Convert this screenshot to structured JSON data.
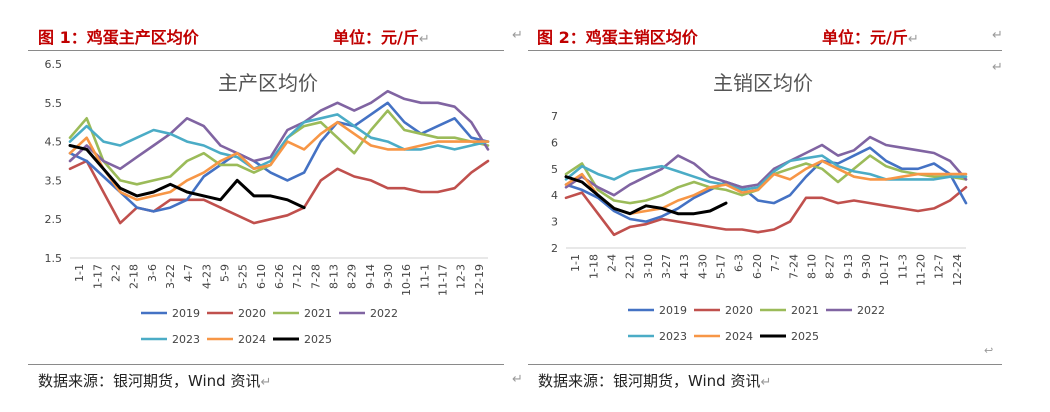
{
  "left": {
    "title": "图 1：鸡蛋主产区均价",
    "unit": "单位：元/斤",
    "source": "数据来源：银河期货，Wind 资讯"
  },
  "right": {
    "title": "图 2：鸡蛋主销区均价",
    "unit": "单位：元/斤",
    "source": "数据来源：银河期货，Wind 资讯"
  },
  "marks": {
    "para": "↵",
    "enter": "↵",
    "small": "↩"
  },
  "chart_data": [
    {
      "type": "line",
      "title": "主产区均价",
      "ylim": [
        1.5,
        6.5
      ],
      "yticks": [
        "6.5",
        "5.5",
        "4.5",
        "3.5",
        "2.5",
        "1.5"
      ],
      "xlabels": [
        "1-1",
        "1-17",
        "2-2",
        "2-18",
        "3-6",
        "3-22",
        "4-7",
        "4-23",
        "5-9",
        "5-25",
        "6-10",
        "6-26",
        "7-12",
        "7-28",
        "8-13",
        "8-29",
        "9-14",
        "9-30",
        "10-16",
        "11-1",
        "11-17",
        "12-3",
        "12-19"
      ],
      "series": [
        {
          "name": "2019",
          "color": "#4472c4",
          "values": [
            4.2,
            4.0,
            3.6,
            3.2,
            2.8,
            2.7,
            2.8,
            3.0,
            3.6,
            3.9,
            4.2,
            4.0,
            3.7,
            3.5,
            3.7,
            4.5,
            5.0,
            4.9,
            5.2,
            5.5,
            5.0,
            4.7,
            4.9,
            5.1,
            4.6,
            4.5
          ]
        },
        {
          "name": "2020",
          "color": "#c0504d",
          "values": [
            3.8,
            4.0,
            3.2,
            2.4,
            2.8,
            2.7,
            3.0,
            3.0,
            3.0,
            2.8,
            2.6,
            2.4,
            2.5,
            2.6,
            2.8,
            3.5,
            3.8,
            3.6,
            3.5,
            3.3,
            3.3,
            3.2,
            3.2,
            3.3,
            3.7,
            4.0
          ]
        },
        {
          "name": "2021",
          "color": "#9bbb59",
          "values": [
            4.6,
            5.1,
            4.0,
            3.5,
            3.4,
            3.5,
            3.6,
            4.0,
            4.2,
            3.9,
            3.9,
            3.7,
            3.9,
            4.6,
            4.9,
            5.0,
            4.6,
            4.2,
            4.8,
            5.3,
            4.8,
            4.7,
            4.6,
            4.6,
            4.5,
            4.4
          ]
        },
        {
          "name": "2022",
          "color": "#8064a2",
          "values": [
            4.0,
            4.4,
            4.0,
            3.8,
            4.1,
            4.4,
            4.7,
            5.1,
            4.9,
            4.4,
            4.2,
            4.0,
            4.1,
            4.8,
            5.0,
            5.3,
            5.5,
            5.3,
            5.5,
            5.8,
            5.6,
            5.5,
            5.5,
            5.4,
            5.0,
            4.3
          ]
        },
        {
          "name": "2023",
          "color": "#4bacc6",
          "values": [
            4.5,
            4.9,
            4.5,
            4.4,
            4.6,
            4.8,
            4.7,
            4.5,
            4.4,
            4.2,
            4.1,
            3.8,
            4.0,
            4.6,
            5.0,
            5.1,
            5.2,
            4.9,
            4.6,
            4.5,
            4.3,
            4.3,
            4.4,
            4.3,
            4.4,
            4.5
          ]
        },
        {
          "name": "2024",
          "color": "#f79646",
          "values": [
            4.2,
            4.6,
            3.8,
            3.2,
            3.0,
            3.1,
            3.2,
            3.5,
            3.7,
            4.0,
            4.2,
            3.8,
            3.9,
            4.5,
            4.3,
            4.7,
            5.0,
            4.7,
            4.4,
            4.3,
            4.3,
            4.4,
            4.5,
            4.5,
            4.5,
            4.5
          ]
        },
        {
          "name": "2025",
          "color": "#000000",
          "values": [
            4.4,
            4.3,
            3.8,
            3.3,
            3.1,
            3.2,
            3.4,
            3.2,
            3.1,
            3.0,
            3.5,
            3.1,
            3.1,
            3.0,
            2.8
          ]
        }
      ],
      "legend": [
        "2019",
        "2020",
        "2021",
        "2022",
        "2023",
        "2024",
        "2025"
      ]
    },
    {
      "type": "line",
      "title": "主销区均价",
      "ylim": [
        2,
        7
      ],
      "yticks": [
        "7",
        "6",
        "5",
        "4",
        "3",
        "2"
      ],
      "xlabels": [
        "1-1",
        "1-18",
        "2-4",
        "2-21",
        "3-10",
        "3-27",
        "4-13",
        "4-30",
        "5-17",
        "6-3",
        "6-20",
        "7-7",
        "7-24",
        "8-10",
        "8-27",
        "9-13",
        "9-30",
        "10-17",
        "11-3",
        "11-20",
        "12-7",
        "12-24"
      ],
      "series": [
        {
          "name": "2019",
          "color": "#4472c4",
          "values": [
            4.4,
            4.2,
            3.9,
            3.4,
            3.1,
            3.0,
            3.2,
            3.5,
            3.9,
            4.2,
            4.5,
            4.3,
            3.8,
            3.7,
            4.0,
            4.7,
            5.3,
            5.2,
            5.5,
            5.8,
            5.3,
            5.0,
            5.0,
            5.2,
            4.8,
            3.7
          ]
        },
        {
          "name": "2020",
          "color": "#c0504d",
          "values": [
            3.9,
            4.1,
            3.3,
            2.5,
            2.8,
            2.9,
            3.1,
            3.0,
            2.9,
            2.8,
            2.7,
            2.7,
            2.6,
            2.7,
            3.0,
            3.9,
            3.9,
            3.7,
            3.8,
            3.7,
            3.6,
            3.5,
            3.4,
            3.5,
            3.8,
            4.3
          ]
        },
        {
          "name": "2021",
          "color": "#9bbb59",
          "values": [
            4.8,
            5.2,
            4.2,
            3.8,
            3.7,
            3.8,
            4.0,
            4.3,
            4.5,
            4.3,
            4.2,
            4.0,
            4.2,
            4.8,
            5.0,
            5.2,
            5.0,
            4.5,
            5.0,
            5.5,
            5.1,
            4.9,
            4.8,
            4.7,
            4.7,
            4.6
          ]
        },
        {
          "name": "2022",
          "color": "#8064a2",
          "values": [
            4.3,
            4.7,
            4.3,
            4.0,
            4.4,
            4.7,
            5.0,
            5.5,
            5.2,
            4.7,
            4.5,
            4.3,
            4.4,
            5.0,
            5.3,
            5.6,
            5.9,
            5.5,
            5.7,
            6.2,
            5.9,
            5.8,
            5.7,
            5.6,
            5.3,
            4.6
          ]
        },
        {
          "name": "2023",
          "color": "#4bacc6",
          "values": [
            4.6,
            5.1,
            4.8,
            4.6,
            4.9,
            5.0,
            5.1,
            4.9,
            4.7,
            4.5,
            4.4,
            4.2,
            4.3,
            4.9,
            5.3,
            5.4,
            5.5,
            5.1,
            4.9,
            4.8,
            4.6,
            4.6,
            4.6,
            4.6,
            4.7,
            4.7
          ]
        },
        {
          "name": "2024",
          "color": "#f79646",
          "values": [
            4.4,
            4.8,
            4.0,
            3.5,
            3.3,
            3.4,
            3.5,
            3.8,
            4.0,
            4.3,
            4.4,
            4.1,
            4.2,
            4.8,
            4.6,
            5.0,
            5.3,
            5.0,
            4.7,
            4.6,
            4.6,
            4.7,
            4.8,
            4.8,
            4.8,
            4.8
          ]
        },
        {
          "name": "2025",
          "color": "#000000",
          "values": [
            4.7,
            4.5,
            4.0,
            3.5,
            3.3,
            3.6,
            3.5,
            3.3,
            3.3,
            3.4,
            3.7
          ]
        }
      ],
      "legend": [
        "2019",
        "2020",
        "2021",
        "2022",
        "2023",
        "2024",
        "2025"
      ]
    }
  ]
}
